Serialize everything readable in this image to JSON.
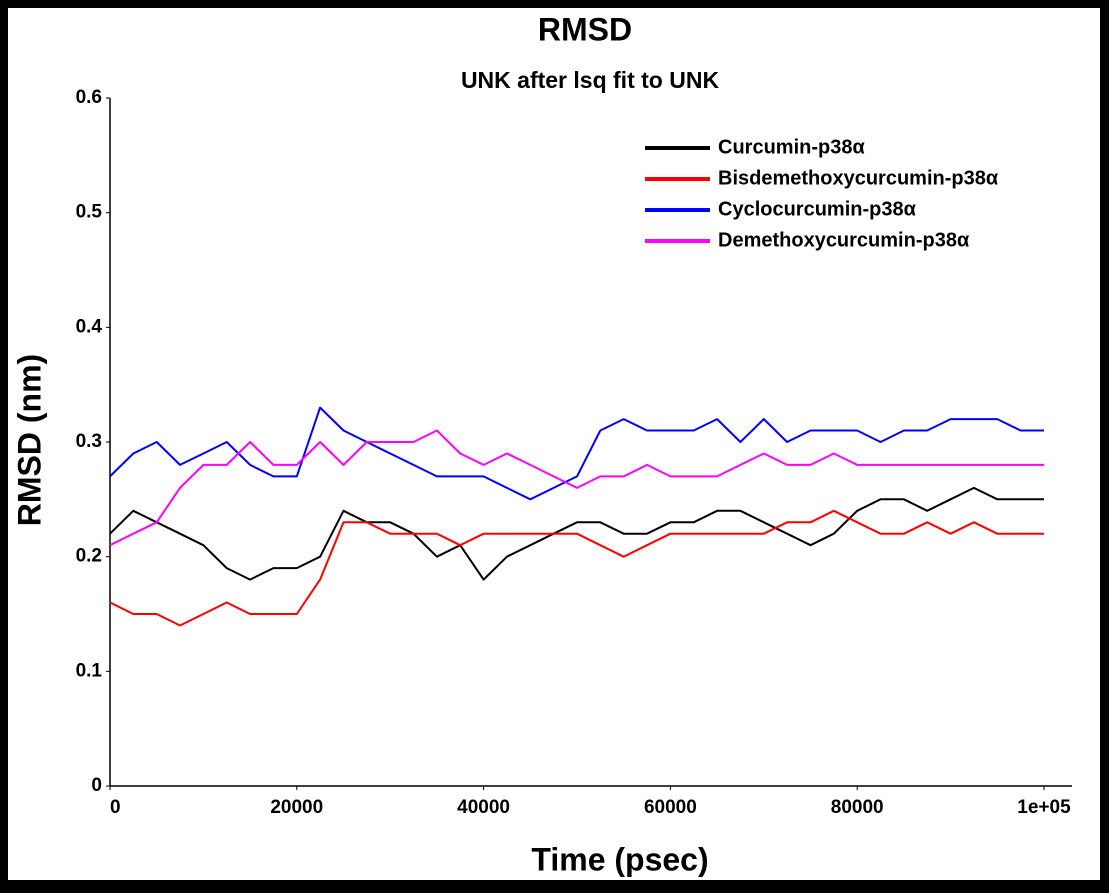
{
  "chart_data": {
    "type": "line",
    "title": "RMSD",
    "subtitle": "UNK after lsq fit to UNK",
    "x_label": "Time (psec)",
    "y_label": "RMSD (nm)",
    "x": [
      0,
      2500,
      5000,
      7500,
      10000,
      12500,
      15000,
      17500,
      20000,
      22500,
      25000,
      27500,
      30000,
      32500,
      35000,
      37500,
      40000,
      42500,
      45000,
      47500,
      50000,
      52500,
      55000,
      57500,
      60000,
      62500,
      65000,
      67500,
      70000,
      72500,
      75000,
      77500,
      80000,
      82500,
      85000,
      87500,
      90000,
      92500,
      95000,
      97500,
      100000
    ],
    "series": [
      {
        "name": "Curcumin-p38α",
        "color": "#000000",
        "values": [
          0.22,
          0.24,
          0.23,
          0.22,
          0.21,
          0.19,
          0.18,
          0.19,
          0.19,
          0.2,
          0.24,
          0.23,
          0.23,
          0.22,
          0.2,
          0.21,
          0.18,
          0.2,
          0.21,
          0.22,
          0.23,
          0.23,
          0.22,
          0.22,
          0.23,
          0.23,
          0.24,
          0.24,
          0.23,
          0.22,
          0.21,
          0.22,
          0.24,
          0.25,
          0.25,
          0.24,
          0.25,
          0.26,
          0.25,
          0.25,
          0.25
        ]
      },
      {
        "name": "Bisdemethoxycurcumin-p38α",
        "color": "#ff0000",
        "values": [
          0.16,
          0.15,
          0.15,
          0.14,
          0.15,
          0.16,
          0.15,
          0.15,
          0.15,
          0.18,
          0.23,
          0.23,
          0.22,
          0.22,
          0.22,
          0.21,
          0.22,
          0.22,
          0.22,
          0.22,
          0.22,
          0.21,
          0.2,
          0.21,
          0.22,
          0.22,
          0.22,
          0.22,
          0.22,
          0.23,
          0.23,
          0.24,
          0.23,
          0.22,
          0.22,
          0.23,
          0.22,
          0.23,
          0.22,
          0.22,
          0.22
        ]
      },
      {
        "name": "Cyclocurcumin-p38α",
        "color": "#0000ff",
        "values": [
          0.27,
          0.29,
          0.3,
          0.28,
          0.29,
          0.3,
          0.28,
          0.27,
          0.27,
          0.33,
          0.31,
          0.3,
          0.29,
          0.28,
          0.27,
          0.27,
          0.27,
          0.26,
          0.25,
          0.26,
          0.27,
          0.31,
          0.32,
          0.31,
          0.31,
          0.31,
          0.32,
          0.3,
          0.32,
          0.3,
          0.31,
          0.31,
          0.31,
          0.3,
          0.31,
          0.31,
          0.32,
          0.32,
          0.32,
          0.31,
          0.31
        ]
      },
      {
        "name": "Demethoxycurcumin-p38α",
        "color": "#ff00ff",
        "values": [
          0.21,
          0.22,
          0.23,
          0.26,
          0.28,
          0.28,
          0.3,
          0.28,
          0.28,
          0.3,
          0.28,
          0.3,
          0.3,
          0.3,
          0.31,
          0.29,
          0.28,
          0.29,
          0.28,
          0.27,
          0.26,
          0.27,
          0.27,
          0.28,
          0.27,
          0.27,
          0.27,
          0.28,
          0.29,
          0.28,
          0.28,
          0.29,
          0.28,
          0.28,
          0.28,
          0.28,
          0.28,
          0.28,
          0.28,
          0.28,
          0.28
        ]
      }
    ],
    "xlim": [
      0,
      103000
    ],
    "ylim": [
      0,
      0.6
    ],
    "xticks": [
      0,
      20000,
      40000,
      60000,
      80000,
      {
        "value": 100000,
        "label": "1e+05"
      }
    ],
    "yticks": [
      0,
      0.1,
      0.2,
      0.3,
      0.4,
      0.5,
      0.6
    ],
    "legend": "upper right",
    "grid": false
  }
}
